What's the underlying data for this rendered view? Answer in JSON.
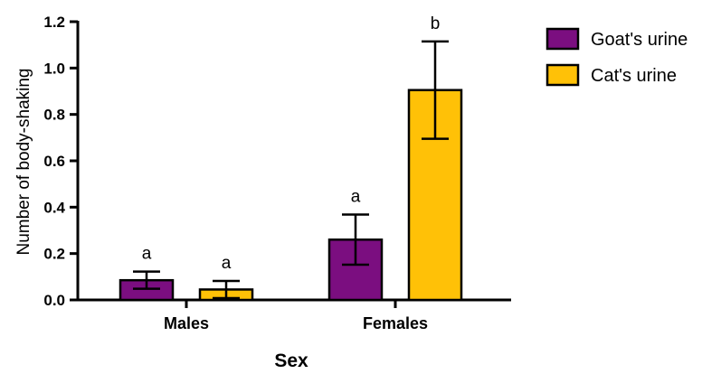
{
  "chart_data": {
    "type": "bar",
    "categories": [
      "Males",
      "Females"
    ],
    "series": [
      {
        "name": "Goat's urine",
        "color": "#7b0e80",
        "values": [
          0.085,
          0.26
        ],
        "errors": [
          0.037,
          0.108
        ],
        "letters": [
          "a",
          "a"
        ]
      },
      {
        "name": "Cat's urine",
        "color": "#ffc107",
        "values": [
          0.045,
          0.905
        ],
        "errors": [
          0.037,
          0.21
        ],
        "letters": [
          "a",
          "b"
        ]
      }
    ],
    "xlabel": "Sex",
    "ylabel": "Number of body-shaking",
    "ylim": [
      0,
      1.2
    ],
    "yticks": [
      "0.0",
      "0.2",
      "0.4",
      "0.6",
      "0.8",
      "1.0",
      "1.2"
    ],
    "grid": false,
    "legend": "top-right"
  }
}
